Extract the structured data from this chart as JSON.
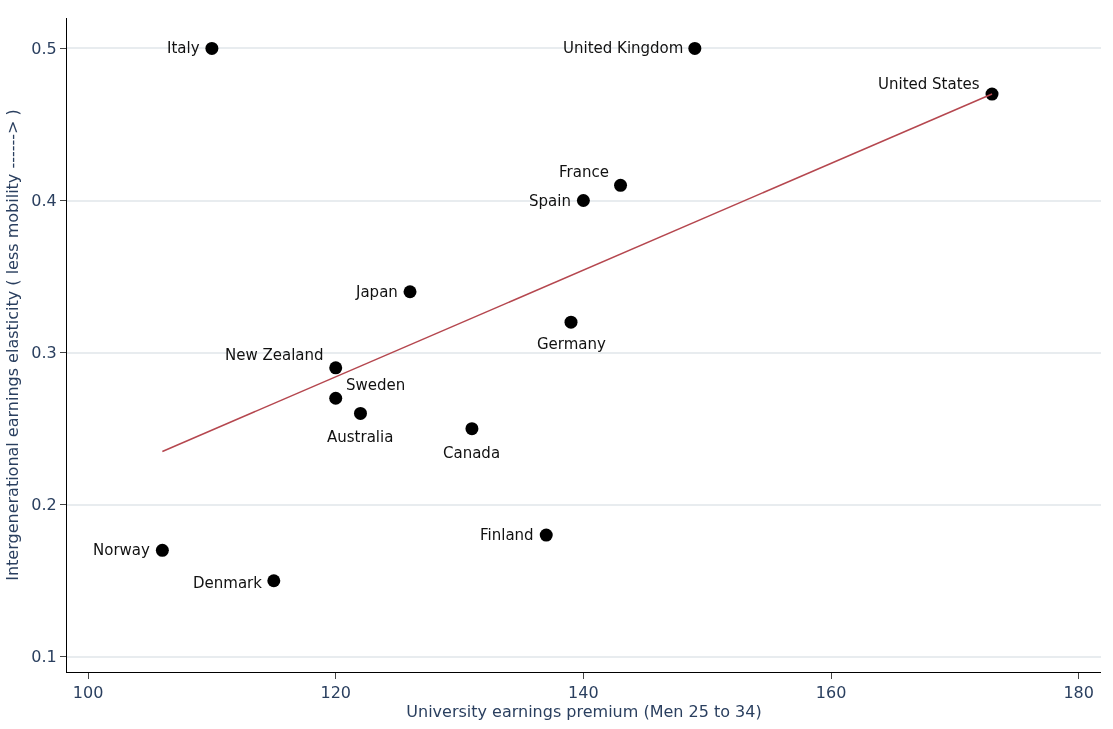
{
  "chart_data": {
    "type": "scatter",
    "xlabel": "University earnings premium (Men 25 to 34)",
    "ylabel": "Intergenerational earnings elasticity ( less mobility ------> )",
    "xlim": [
      98.3,
      181.8
    ],
    "ylim": [
      0.09,
      0.52
    ],
    "xticks": [
      100,
      120,
      140,
      160,
      180
    ],
    "yticks": [
      0.1,
      0.2,
      0.3,
      0.4,
      0.5
    ],
    "grid": "y",
    "marker": "circle",
    "series": [
      {
        "color": "#000000",
        "x": [
          110,
          149,
          173,
          143,
          140,
          126,
          139,
          120,
          120,
          122,
          131,
          137,
          106,
          115
        ],
        "values": [
          0.5,
          0.5,
          0.47,
          0.41,
          0.4,
          0.34,
          0.32,
          0.29,
          0.27,
          0.26,
          0.25,
          0.18,
          0.17,
          0.15
        ]
      },
      {
        "type": "line",
        "color": "#b5474f",
        "marker": "none",
        "x": [
          106,
          173
        ],
        "values": [
          0.235,
          0.47
        ]
      }
    ],
    "annotations": [
      {
        "text": "Italy",
        "x": 110,
        "y": 0.5
      },
      {
        "text": "United Kingdom",
        "x": 149,
        "y": 0.5
      },
      {
        "text": "United States",
        "x": 173,
        "y": 0.47
      },
      {
        "text": "France",
        "x": 143,
        "y": 0.41
      },
      {
        "text": "Spain",
        "x": 140,
        "y": 0.4
      },
      {
        "text": "Japan",
        "x": 126,
        "y": 0.34
      },
      {
        "text": "Germany",
        "x": 139,
        "y": 0.32
      },
      {
        "text": "New Zealand",
        "x": 120,
        "y": 0.29
      },
      {
        "text": "Sweden",
        "x": 120,
        "y": 0.27
      },
      {
        "text": "Australia",
        "x": 122,
        "y": 0.26
      },
      {
        "text": "Canada",
        "x": 131,
        "y": 0.25
      },
      {
        "text": "Finland",
        "x": 137,
        "y": 0.18
      },
      {
        "text": "Norway",
        "x": 106,
        "y": 0.17
      },
      {
        "text": "Denmark",
        "x": 115,
        "y": 0.15
      }
    ]
  }
}
